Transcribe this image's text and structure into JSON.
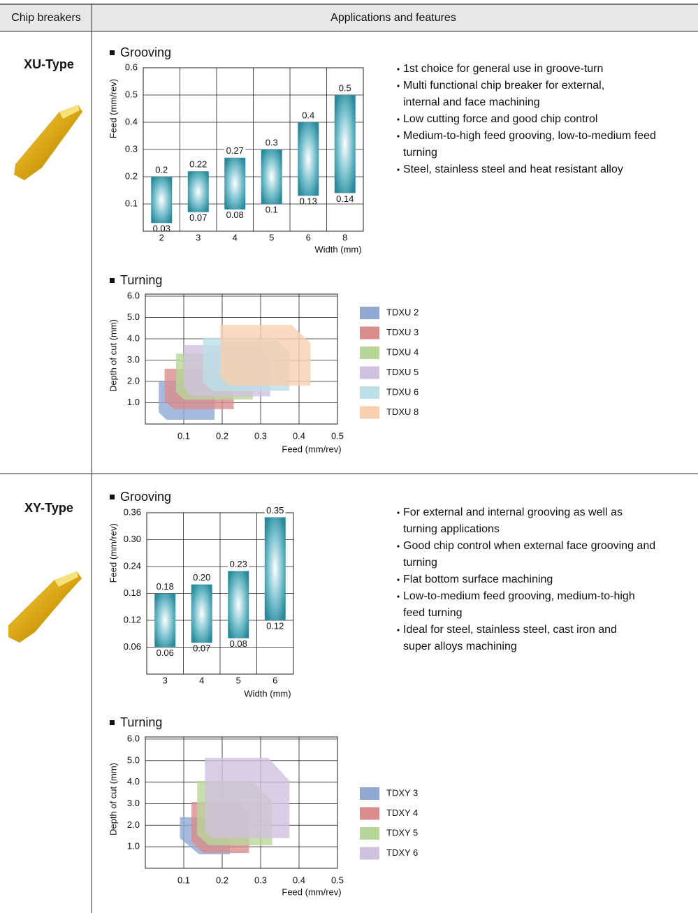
{
  "header": {
    "col1": "Chip breakers",
    "col2": "Applications and features"
  },
  "sections": [
    {
      "name": "XU-Type",
      "grooving": {
        "type": "range-bar",
        "title": "Grooving",
        "y_label": "Feed (mm/rev)",
        "x_label": "Width (mm)",
        "categories": [
          "2",
          "3",
          "4",
          "5",
          "6",
          "8"
        ],
        "low": {
          "values": [
            0.03,
            0.07,
            0.08,
            0.1,
            0.13,
            0.14
          ]
        },
        "high": {
          "values": [
            0.2,
            0.22,
            0.27,
            0.3,
            0.4,
            0.5
          ]
        },
        "ylim": [
          0,
          0.6
        ],
        "yticks": [
          0.1,
          0.2,
          0.3,
          0.4,
          0.5,
          0.6
        ]
      },
      "turning": {
        "type": "region",
        "title": "Turning",
        "y_label": "Depth of cut (mm)",
        "x_label": "Feed (mm/rev)",
        "xlim": [
          0,
          0.5
        ],
        "xticks": [
          0.1,
          0.2,
          0.3,
          0.4,
          0.5
        ],
        "ylim": [
          0,
          6
        ],
        "yticks": [
          {
            "value": 1,
            "label": "1.0"
          },
          {
            "value": 2,
            "label": "2.0"
          },
          {
            "value": 3,
            "label": "3.0"
          },
          {
            "value": 4,
            "label": "4.0"
          },
          {
            "value": 5,
            "label": "5.0"
          },
          {
            "value": 6,
            "label": "6.0"
          }
        ],
        "series": [
          {
            "name": "TDXU 2",
            "color": "#8fa9d3",
            "x": [
              0.035,
              0.155,
              0.18,
              0.18,
              0.055,
              0.035
            ],
            "y": [
              2.0,
              2.0,
              1.55,
              0.2,
              0.2,
              0.55
            ]
          },
          {
            "name": "TDXU 3",
            "color": "#d98d8d",
            "x": [
              0.05,
              0.205,
              0.23,
              0.23,
              0.075,
              0.05
            ],
            "y": [
              2.6,
              2.6,
              2.05,
              0.7,
              0.7,
              1.05
            ]
          },
          {
            "name": "TDXU 4",
            "color": "#b9d69a",
            "x": [
              0.08,
              0.25,
              0.28,
              0.28,
              0.1,
              0.08
            ],
            "y": [
              3.3,
              3.3,
              2.6,
              1.15,
              1.15,
              1.5
            ]
          },
          {
            "name": "TDXU 5",
            "color": "#cfc2de",
            "x": [
              0.1,
              0.295,
              0.325,
              0.325,
              0.12,
              0.1
            ],
            "y": [
              3.7,
              3.7,
              3.0,
              1.3,
              1.3,
              1.7
            ]
          },
          {
            "name": "TDXU 6",
            "color": "#bde0e8",
            "x": [
              0.15,
              0.34,
              0.375,
              0.375,
              0.175,
              0.15
            ],
            "y": [
              4.05,
              4.05,
              3.35,
              1.55,
              1.55,
              1.95
            ]
          },
          {
            "name": "TDXU 8",
            "color": "#f8cfaf",
            "x": [
              0.195,
              0.38,
              0.43,
              0.43,
              0.22,
              0.195
            ],
            "y": [
              4.65,
              4.65,
              3.8,
              1.8,
              1.8,
              2.2
            ]
          }
        ]
      },
      "features": [
        [
          "1st choice for general use in groove-turn"
        ],
        [
          "Multi functional chip breaker for external,",
          "internal and face machining"
        ],
        [
          "Low cutting force and good chip control"
        ],
        [
          "Medium-to-high feed grooving, low-to-medium feed",
          "turning"
        ],
        [
          "Steel, stainless steel and heat resistant alloy"
        ]
      ]
    },
    {
      "name": "XY-Type",
      "grooving": {
        "type": "range-bar",
        "title": "Grooving",
        "y_label": "Feed (mm/rev)",
        "x_label": "Width (mm)",
        "categories": [
          "3",
          "4",
          "5",
          "6"
        ],
        "low": {
          "values": [
            0.06,
            0.07,
            0.08,
            0.12
          ]
        },
        "high": {
          "values": [
            0.18,
            0.2,
            0.23,
            0.35
          ],
          "value_labels": [
            "0.18",
            "0.20",
            "0.23",
            "0.35"
          ]
        },
        "ylim": [
          0,
          0.36
        ],
        "yticks": [
          0.06,
          0.12,
          0.18,
          0.24,
          {
            "value": 0.3,
            "label": "0.30"
          },
          0.36
        ]
      },
      "turning": {
        "type": "region",
        "title": "Turning",
        "y_label": "Depth of cut (mm)",
        "x_label": "Feed (mm/rev)",
        "xlim": [
          0,
          0.5
        ],
        "xticks": [
          0.1,
          0.2,
          0.3,
          0.4,
          0.5
        ],
        "ylim": [
          0,
          6
        ],
        "yticks": [
          {
            "value": 1,
            "label": "1.0"
          },
          {
            "value": 2,
            "label": "2.0"
          },
          {
            "value": 3,
            "label": "3.0"
          },
          {
            "value": 4,
            "label": "4.0"
          },
          {
            "value": 5,
            "label": "5.0"
          },
          {
            "value": 6,
            "label": "6.0"
          }
        ],
        "series": [
          {
            "name": "TDXY 3",
            "color": "#8fa9d3",
            "x": [
              0.09,
              0.2,
              0.22,
              0.22,
              0.14,
              0.09
            ],
            "y": [
              2.37,
              2.37,
              1.88,
              0.65,
              0.65,
              1.4
            ]
          },
          {
            "name": "TDXY 4",
            "color": "#d98d8d",
            "x": [
              0.12,
              0.24,
              0.27,
              0.27,
              0.15,
              0.12
            ],
            "y": [
              3.08,
              3.08,
              2.53,
              0.71,
              0.71,
              1.23
            ]
          },
          {
            "name": "TDXY 5",
            "color": "#b9d69a",
            "x": [
              0.135,
              0.275,
              0.33,
              0.33,
              0.165,
              0.135
            ],
            "y": [
              4.06,
              4.06,
              3.12,
              1.07,
              1.07,
              1.56
            ]
          },
          {
            "name": "TDXY 6",
            "color": "#cfc2de",
            "x": [
              0.155,
              0.32,
              0.375,
              0.375,
              0.175,
              0.155
            ],
            "y": [
              5.13,
              5.13,
              4.06,
              1.4,
              1.4,
              1.7
            ]
          }
        ]
      },
      "features": [
        [
          "For external and internal grooving as well as",
          "turning applications"
        ],
        [
          "Good chip control when external face grooving and",
          "turning"
        ],
        [
          "Flat bottom surface machining"
        ],
        [
          "Low-to-medium feed grooving, medium-to-high",
          "feed turning"
        ],
        [
          "Ideal for steel, stainless steel, cast iron and",
          "super alloys machining"
        ]
      ]
    }
  ]
}
